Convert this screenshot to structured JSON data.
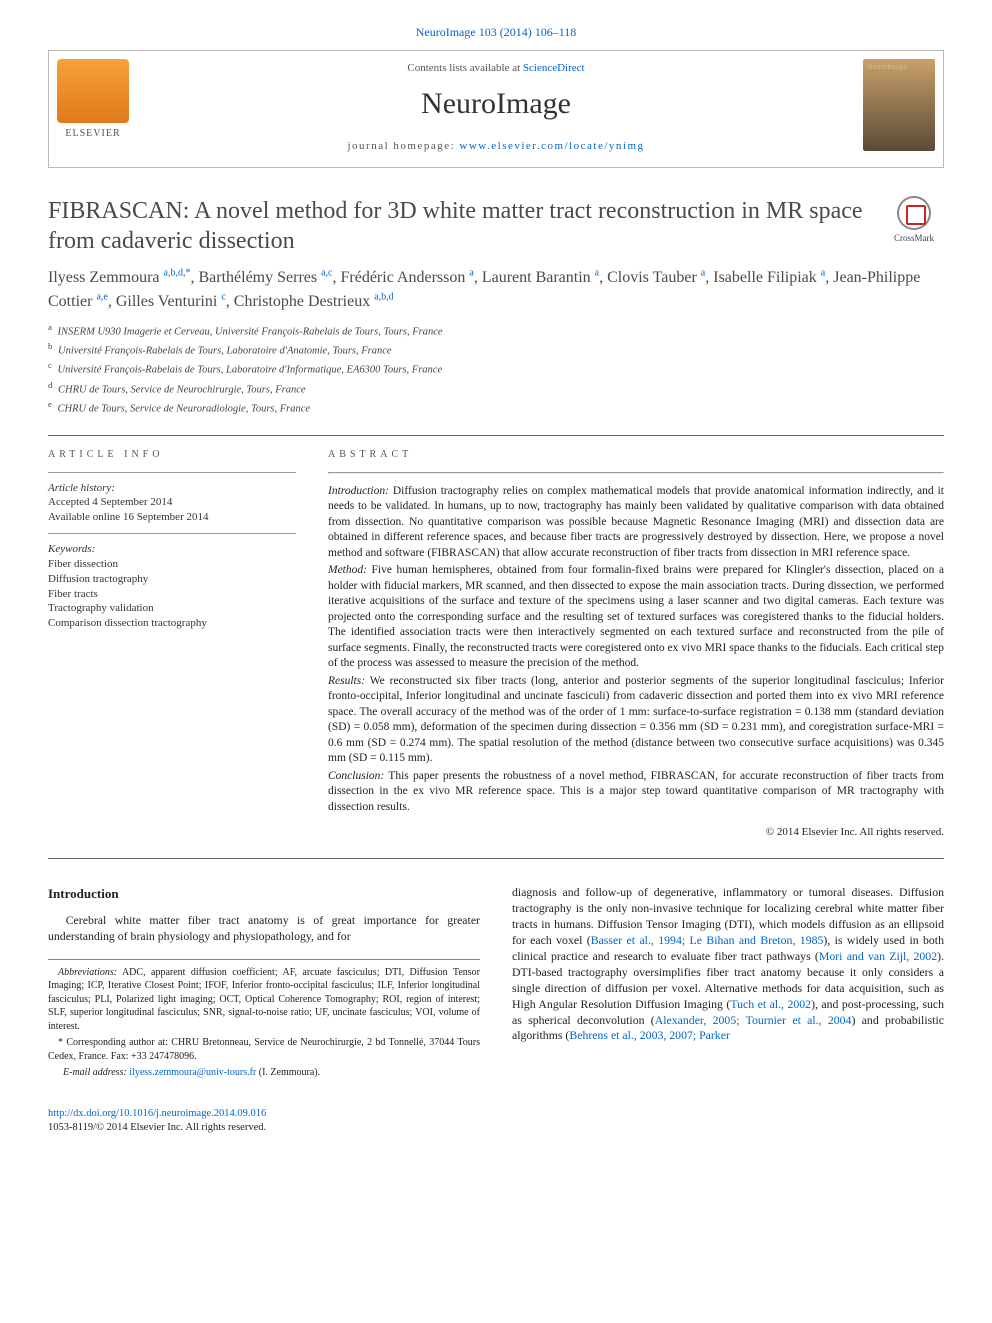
{
  "top_link": {
    "journal": "NeuroImage",
    "citation": "103 (2014) 106–118"
  },
  "header": {
    "contents_prefix": "Contents lists available at ",
    "contents_link": "ScienceDirect",
    "journal_name": "NeuroImage",
    "homepage_prefix": "journal homepage: ",
    "homepage_url": "www.elsevier.com/locate/ynimg",
    "publisher_label": "ELSEVIER"
  },
  "crossmark_label": "CrossMark",
  "title": "FIBRASCAN: A novel method for 3D white matter tract reconstruction in MR space from cadaveric dissection",
  "authors": [
    {
      "name": "Ilyess Zemmoura ",
      "sup": "a,b,d,*"
    },
    {
      "name": ", Barthélémy Serres ",
      "sup": "a,c"
    },
    {
      "name": ", Frédéric Andersson ",
      "sup": "a"
    },
    {
      "name": ", Laurent Barantin ",
      "sup": "a"
    },
    {
      "name": ", Clovis Tauber ",
      "sup": "a"
    },
    {
      "name": ", Isabelle Filipiak ",
      "sup": "a"
    },
    {
      "name": ", Jean-Philippe Cottier ",
      "sup": "a,e"
    },
    {
      "name": ", Gilles Venturini ",
      "sup": "c"
    },
    {
      "name": ", Christophe Destrieux ",
      "sup": "a,b,d"
    }
  ],
  "affiliations": [
    {
      "key": "a",
      "text": "INSERM U930 Imagerie et Cerveau, Université François-Rabelais de Tours, Tours, France"
    },
    {
      "key": "b",
      "text": "Université François-Rabelais de Tours, Laboratoire d'Anatomie, Tours, France"
    },
    {
      "key": "c",
      "text": "Université François-Rabelais de Tours, Laboratoire d'Informatique, EA6300 Tours, France"
    },
    {
      "key": "d",
      "text": "CHRU de Tours, Service de Neurochirurgie, Tours, France"
    },
    {
      "key": "e",
      "text": "CHRU de Tours, Service de Neuroradiologie, Tours, France"
    }
  ],
  "article_info": {
    "heading": "article info",
    "history_label": "Article history:",
    "accepted": "Accepted 4 September 2014",
    "online": "Available online 16 September 2014",
    "keywords_label": "Keywords:",
    "keywords": [
      "Fiber dissection",
      "Diffusion tractography",
      "Fiber tracts",
      "Tractography validation",
      "Comparison dissection tractography"
    ]
  },
  "abstract": {
    "heading": "abstract",
    "sections": [
      {
        "label": "Introduction:",
        "text": " Diffusion tractography relies on complex mathematical models that provide anatomical information indirectly, and it needs to be validated. In humans, up to now, tractography has mainly been validated by qualitative comparison with data obtained from dissection. No quantitative comparison was possible because Magnetic Resonance Imaging (MRI) and dissection data are obtained in different reference spaces, and because fiber tracts are progressively destroyed by dissection. Here, we propose a novel method and software (FIBRASCAN) that allow accurate reconstruction of fiber tracts from dissection in MRI reference space."
      },
      {
        "label": "Method:",
        "text": " Five human hemispheres, obtained from four formalin-fixed brains were prepared for Klingler's dissection, placed on a holder with fiducial markers, MR scanned, and then dissected to expose the main association tracts. During dissection, we performed iterative acquisitions of the surface and texture of the specimens using a laser scanner and two digital cameras. Each texture was projected onto the corresponding surface and the resulting set of textured surfaces was coregistered thanks to the fiducial holders. The identified association tracts were then interactively segmented on each textured surface and reconstructed from the pile of surface segments. Finally, the reconstructed tracts were coregistered onto ex vivo MRI space thanks to the fiducials. Each critical step of the process was assessed to measure the precision of the method."
      },
      {
        "label": "Results:",
        "text": " We reconstructed six fiber tracts (long, anterior and posterior segments of the superior longitudinal fasciculus; Inferior fronto-occipital, Inferior longitudinal and uncinate fasciculi) from cadaveric dissection and ported them into ex vivo MRI reference space. The overall accuracy of the method was of the order of 1 mm: surface-to-surface registration = 0.138 mm (standard deviation (SD) = 0.058 mm), deformation of the specimen during dissection = 0.356 mm (SD = 0.231 mm), and coregistration surface-MRI = 0.6 mm (SD = 0.274 mm). The spatial resolution of the method (distance between two consecutive surface acquisitions) was 0.345 mm (SD = 0.115 mm)."
      },
      {
        "label": "Conclusion:",
        "text": " This paper presents the robustness of a novel method, FIBRASCAN, for accurate reconstruction of fiber tracts from dissection in the ex vivo MR reference space. This is a major step toward quantitative comparison of MR tractography with dissection results."
      }
    ],
    "copyright": "© 2014 Elsevier Inc. All rights reserved."
  },
  "body": {
    "intro_heading": "Introduction",
    "col1": "Cerebral white matter fiber tract anatomy is of great importance for greater understanding of brain physiology and physiopathology, and for",
    "col2_pre": "diagnosis and follow-up of degenerative, inflammatory or tumoral diseases. Diffusion tractography is the only non-invasive technique for localizing cerebral white matter fiber tracts in humans. Diffusion Tensor Imaging (DTI), which models diffusion as an ellipsoid for each voxel (",
    "col2_link1": "Basser et al., 1994; Le Bihan and Breton, 1985",
    "col2_mid1": "), is widely used in both clinical practice and research to evaluate fiber tract pathways (",
    "col2_link2": "Mori and van Zijl, 2002",
    "col2_mid2": "). DTI-based tractography oversimplifies fiber tract anatomy because it only considers a single direction of diffusion per voxel. Alternative methods for data acquisition, such as High Angular Resolution Diffusion Imaging (",
    "col2_link3": "Tuch et al., 2002",
    "col2_mid3": "), and post-processing, such as spherical deconvolution (",
    "col2_link4": "Alexander, 2005; Tournier et al., 2004",
    "col2_mid4": ") and probabilistic algorithms (",
    "col2_link5": "Behrens et al., 2003, 2007; Parker"
  },
  "footnotes": {
    "abbrev_label": "Abbreviations:",
    "abbrev_text": " ADC, apparent diffusion coefficient; AF, arcuate fasciculus; DTI, Diffusion Tensor Imaging; ICP, Iterative Closest Point; IFOF, Inferior fronto-occipital fasciculus; ILF, Inferior longitudinal fasciculus; PLI, Polarized light imaging; OCT, Optical Coherence Tomography; ROI, region of interest; SLF, superior longitudinal fasciculus; SNR, signal-to-noise ratio; UF, uncinate fasciculus; VOI, volume of interest.",
    "corr_marker": "*",
    "corr_text": " Corresponding author at: CHRU Bretonneau, Service de Neurochirurgie, 2 bd Tonnellé, 37044 Tours Cedex, France. Fax: +33 247478096.",
    "email_label": "E-mail address:",
    "email": " ilyess.zemmoura@univ-tours.fr",
    "email_paren": " (I. Zemmoura)."
  },
  "bottom": {
    "doi": "http://dx.doi.org/10.1016/j.neuroimage.2014.09.016",
    "issn_line": "1053-8119/© 2014 Elsevier Inc. All rights reserved."
  },
  "colors": {
    "link": "#0066cc",
    "text": "#222222",
    "border": "#bbbbbb",
    "rule": "#666666"
  }
}
